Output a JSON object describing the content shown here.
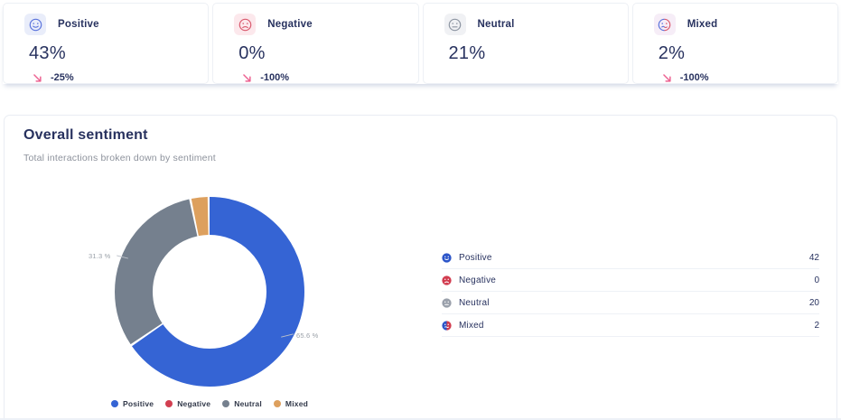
{
  "colors": {
    "positive": "#3564d4",
    "negative": "#d23f50",
    "neutral": "#75808e",
    "mixed": "#dda05e",
    "text": "#28325f",
    "muted": "#8d929c",
    "pink": "#ed6392",
    "border": "#e9edf3"
  },
  "stats": {
    "cards": [
      {
        "label": "Positive",
        "value": "43%",
        "change": "-25%"
      },
      {
        "label": "Negative",
        "value": "0%",
        "change": "-100%"
      },
      {
        "label": "Neutral",
        "value": "21%",
        "change": ""
      },
      {
        "label": "Mixed",
        "value": "2%",
        "change": "-100%"
      }
    ]
  },
  "panel": {
    "title": "Overall sentiment",
    "subtitle": "Total interactions broken down by sentiment"
  },
  "chart_data": {
    "type": "pie",
    "donut": true,
    "title": "Overall sentiment",
    "series": [
      {
        "name": "Positive",
        "value": 42,
        "color": "#3564d4"
      },
      {
        "name": "Negative",
        "value": 0,
        "color": "#d23f50"
      },
      {
        "name": "Neutral",
        "value": 20,
        "color": "#75808e"
      },
      {
        "name": "Mixed",
        "value": 2,
        "color": "#dda05e"
      }
    ],
    "visible_labels": [
      {
        "text": "31.3 %",
        "target": "Neutral"
      },
      {
        "text": "65.6 %",
        "target": "Positive"
      }
    ],
    "legend_position": "bottom",
    "legend": [
      "Positive",
      "Negative",
      "Neutral",
      "Mixed"
    ]
  },
  "breakdown": {
    "rows": [
      {
        "label": "Positive",
        "value": 42
      },
      {
        "label": "Negative",
        "value": 0
      },
      {
        "label": "Neutral",
        "value": 20
      },
      {
        "label": "Mixed",
        "value": 2
      }
    ]
  }
}
